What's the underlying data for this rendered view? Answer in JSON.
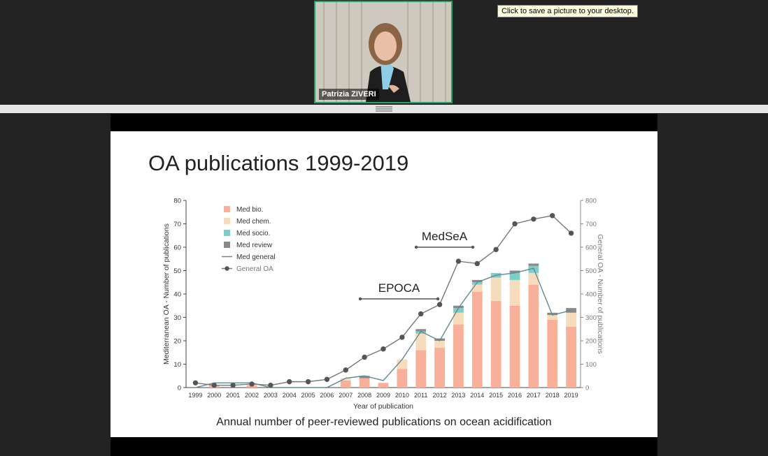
{
  "tooltip": "Click to save a picture to your desktop.",
  "participant": {
    "name": "Patrizia ZIVERI"
  },
  "slide": {
    "title": "OA publications 1999-2019",
    "caption": "Annual number of peer-reviewed publications on ocean acidification"
  },
  "chart_data": {
    "type": "bar",
    "title": "",
    "xlabel": "Year of publication",
    "ylabel": "Mediterranean OA - Number of publications",
    "y2label": "General OA - Number of publications",
    "ylim": [
      0,
      80
    ],
    "y2lim": [
      0,
      800
    ],
    "yticks": [
      0,
      10,
      20,
      30,
      40,
      50,
      60,
      70,
      80
    ],
    "y2ticks": [
      0,
      100,
      200,
      300,
      400,
      500,
      600,
      700,
      800
    ],
    "categories": [
      "1999",
      "2000",
      "2001",
      "2002",
      "2003",
      "2004",
      "2005",
      "2006",
      "2007",
      "2008",
      "2009",
      "2010",
      "2011",
      "2012",
      "2013",
      "2014",
      "2015",
      "2016",
      "2017",
      "2018",
      "2019"
    ],
    "series": [
      {
        "name": "Med bio.",
        "kind": "stack",
        "color": "#f8b09a",
        "values": [
          0,
          1,
          0,
          1,
          0,
          0,
          0,
          0,
          3,
          4,
          2,
          8,
          16,
          17,
          27,
          41,
          37,
          35,
          44,
          29,
          26
        ]
      },
      {
        "name": "Med chem.",
        "kind": "stack",
        "color": "#f6dcbc",
        "values": [
          0,
          0,
          0,
          0,
          0,
          0,
          0,
          0,
          1,
          0,
          0,
          4,
          7,
          3,
          5,
          3,
          10,
          11,
          5,
          2,
          6
        ]
      },
      {
        "name": "Med socio.",
        "kind": "stack",
        "color": "#7ccfc9",
        "values": [
          0,
          0,
          0,
          0,
          0,
          0,
          0,
          0,
          0,
          0,
          0,
          0,
          1,
          0,
          2,
          1,
          2,
          3,
          3,
          0,
          0
        ]
      },
      {
        "name": "Med review",
        "kind": "stack",
        "color": "#8a8a8a",
        "values": [
          0,
          0,
          0,
          0,
          0,
          0,
          0,
          0,
          0,
          1,
          0,
          0,
          1,
          1,
          1,
          1,
          0,
          1,
          1,
          1,
          2
        ]
      },
      {
        "name": "Med general",
        "kind": "line",
        "color": "#5f8a92",
        "values": [
          0,
          2,
          2,
          2,
          0,
          0,
          0,
          0,
          4,
          5,
          3,
          12,
          24,
          20,
          34,
          45,
          48,
          49,
          51,
          31,
          33
        ]
      },
      {
        "name": "General OA",
        "kind": "line-dots",
        "color": "#777777",
        "axis": "right",
        "values": [
          20,
          10,
          10,
          15,
          10,
          25,
          25,
          35,
          75,
          130,
          165,
          215,
          315,
          355,
          540,
          530,
          590,
          700,
          720,
          735,
          660
        ]
      }
    ],
    "annotations": [
      {
        "label": "MedSeA",
        "from": "2011",
        "to": "2014"
      },
      {
        "label": "EPOCA",
        "from": "2008",
        "to": "2012"
      }
    ],
    "legend_position": "top-left"
  }
}
